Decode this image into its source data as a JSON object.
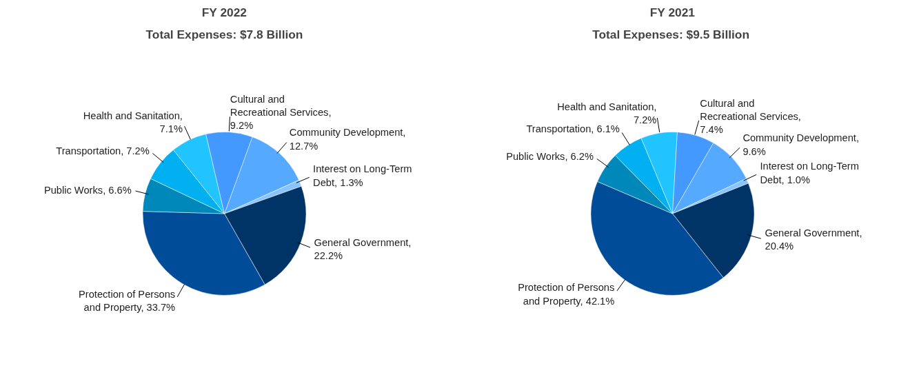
{
  "chart_data": [
    {
      "type": "pie",
      "title": "FY 2022",
      "subtitle": "Total Expenses: $7.8 Billion",
      "categories": [
        "Community Development, 12.7%",
        "Interest on Long-Term Debt, 1.3%",
        "General Government, 22.2%",
        "Protection of Persons and Property, 33.7%",
        "Public Works, 6.6%",
        "Transportation, 7.2%",
        "Health and Sanitation, 7.1%",
        "Cultural and Recreational Services, 9.2%"
      ],
      "values": [
        12.7,
        1.3,
        22.2,
        33.7,
        6.6,
        7.2,
        7.1,
        9.2
      ],
      "colors": [
        "#55aaff",
        "#88c4ff",
        "#003366",
        "#004c99",
        "#0088bb",
        "#00b0f0",
        "#22c4ff",
        "#4499ff"
      ]
    },
    {
      "type": "pie",
      "title": "FY 2021",
      "subtitle": "Total Expenses:  $9.5 Billion",
      "categories": [
        "Community Development, 9.6%",
        "Interest on Long-Term Debt, 1.0%",
        "General Government, 20.4%",
        "Protection of Persons and Property, 42.1%",
        "Public Works, 6.2%",
        "Transportation, 6.1%",
        "Health and Sanitation, 7.2%",
        "Cultural and Recreational Services, 7.4%"
      ],
      "values": [
        9.6,
        1.0,
        20.4,
        42.1,
        6.2,
        6.1,
        7.2,
        7.4
      ],
      "colors": [
        "#55aaff",
        "#88c4ff",
        "#003366",
        "#004c99",
        "#0088bb",
        "#00b0f0",
        "#22c4ff",
        "#4499ff"
      ]
    }
  ]
}
